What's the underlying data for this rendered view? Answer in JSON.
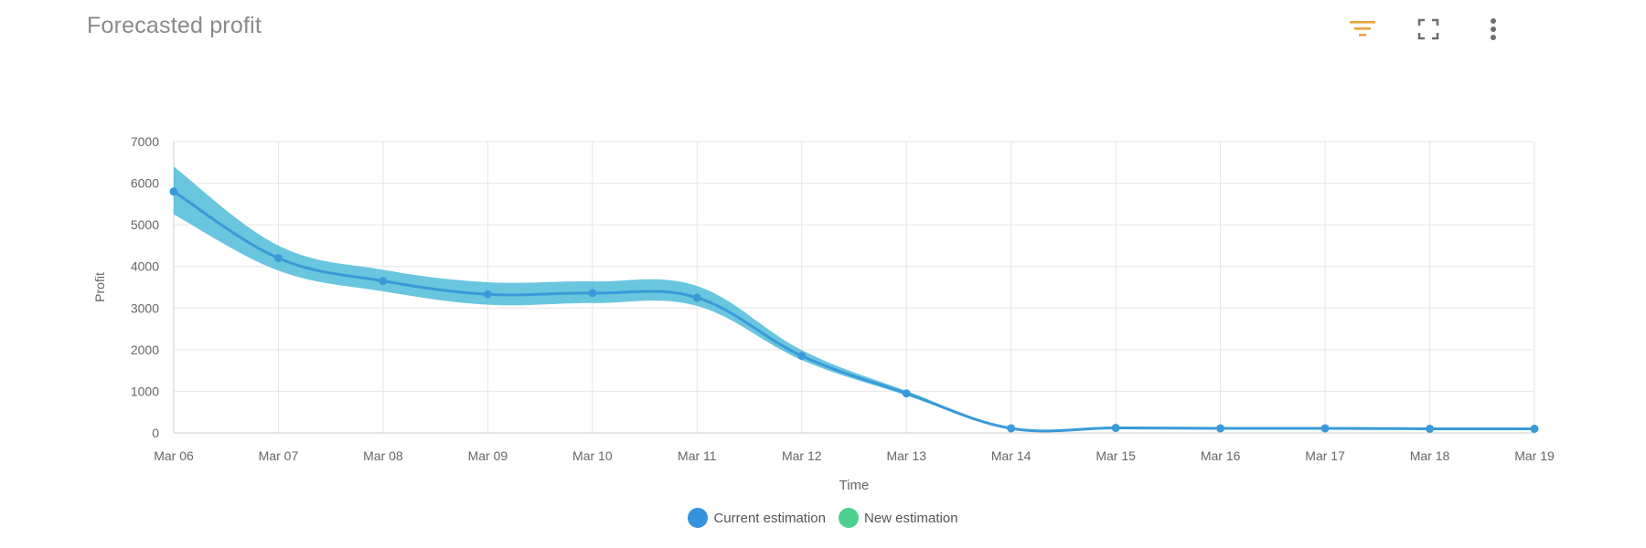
{
  "header": {
    "title": "Forecasted profit",
    "icons": [
      "filter-icon",
      "fullscreen-icon",
      "more-vertical-icon"
    ]
  },
  "colors": {
    "line": "#3a9ad9",
    "band": "#4fbcd8",
    "grid": "#e6e6e6",
    "axis_text": "#666666",
    "filter_icon": "#e8a33d",
    "icon_gray": "#6f6f6f",
    "current_estimation": "#3592dd",
    "new_estimation": "#4ccf8f"
  },
  "legend": {
    "items": [
      {
        "label": "Current estimation",
        "color": "#3592dd"
      },
      {
        "label": "New estimation",
        "color": "#4ccf8f"
      }
    ]
  },
  "chart_data": {
    "type": "line",
    "xlabel": "Time",
    "ylabel": "Profit",
    "ylim": [
      0,
      7000
    ],
    "yticks": [
      0,
      1000,
      2000,
      3000,
      4000,
      5000,
      6000,
      7000
    ],
    "categories": [
      "Mar 06",
      "Mar 07",
      "Mar 08",
      "Mar 09",
      "Mar 10",
      "Mar 11",
      "Mar 12",
      "Mar 13",
      "Mar 14",
      "Mar 15",
      "Mar 16",
      "Mar 17",
      "Mar 18",
      "Mar 19"
    ],
    "grid": true,
    "legend_position": "bottom",
    "series": [
      {
        "name": "Current estimation",
        "values": [
          5800,
          4200,
          3650,
          3330,
          3360,
          3250,
          1850,
          950,
          110,
          120,
          110,
          110,
          100,
          100
        ],
        "lower": [
          5250,
          3900,
          3400,
          3080,
          3120,
          3050,
          1750,
          900,
          90,
          90,
          85,
          85,
          80,
          80
        ],
        "upper": [
          6400,
          4500,
          3920,
          3620,
          3640,
          3530,
          1990,
          1010,
          130,
          150,
          140,
          140,
          130,
          130
        ]
      }
    ]
  }
}
